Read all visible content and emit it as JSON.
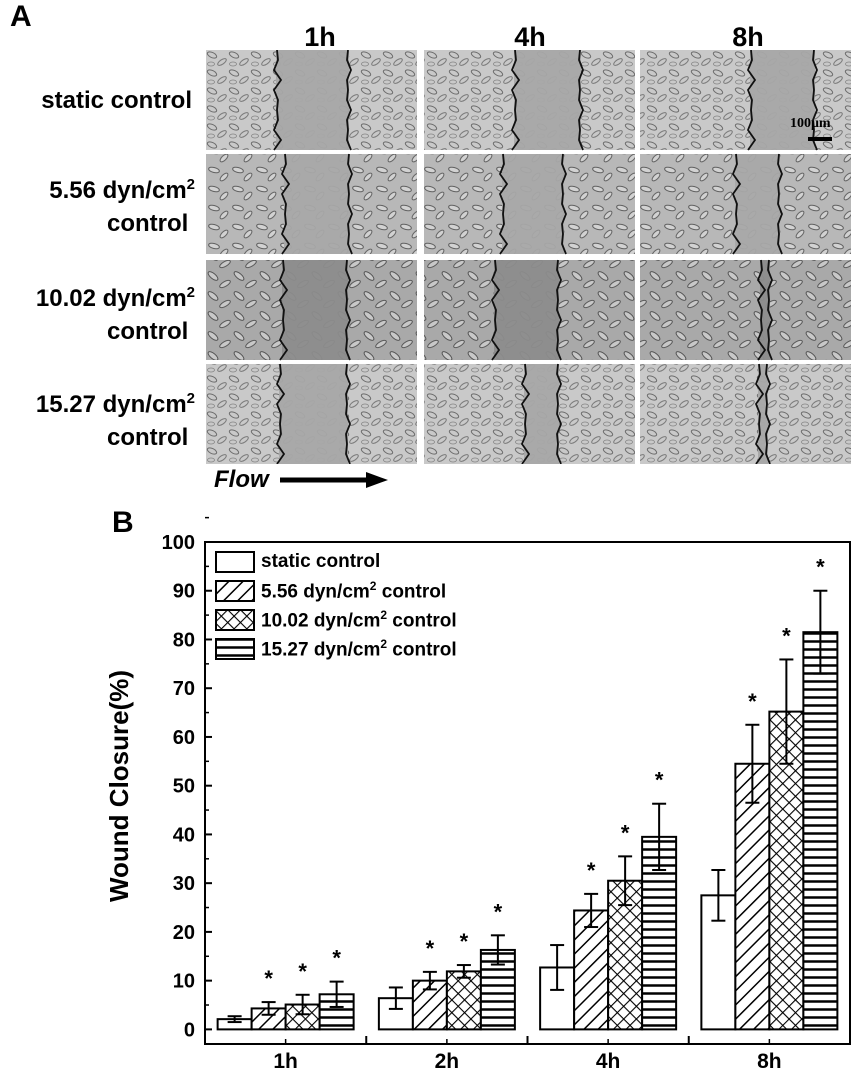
{
  "panel_a": {
    "letter": "A",
    "time_points": [
      "1h",
      "4h",
      "8h"
    ],
    "rows": [
      {
        "line1": "static control",
        "line2": "",
        "sup": ""
      },
      {
        "line1": "5.56 dyn/cm",
        "sup": "2",
        "line2": "control"
      },
      {
        "line1": "10.02 dyn/cm",
        "sup": "2",
        "line2": "control"
      },
      {
        "line1": "15.27 dyn/cm",
        "sup": "2",
        "line2": "control"
      }
    ],
    "scale_bar_label": "100μm",
    "flow_label": "Flow"
  },
  "panel_b": {
    "letter": "B"
  },
  "chart_data": {
    "type": "bar",
    "title": "",
    "xlabel": "",
    "ylabel": "Wound Closure(%)",
    "ylim": [
      0,
      100
    ],
    "yticks": [
      0,
      10,
      20,
      30,
      40,
      50,
      60,
      70,
      80,
      90,
      100
    ],
    "categories": [
      "1h",
      "2h",
      "4h",
      "8h"
    ],
    "legend_position": "top-left",
    "series": [
      {
        "name": "static control",
        "name_main": "static control",
        "name_sup": "",
        "name_tail": "",
        "pattern": "none",
        "values": [
          2.1,
          6.4,
          12.7,
          27.5
        ],
        "errors": [
          0.6,
          2.2,
          4.6,
          5.2
        ],
        "significant": [
          false,
          false,
          false,
          false
        ]
      },
      {
        "name": "5.56 dyn/cm2 control",
        "name_main": "5.56 dyn/cm",
        "name_sup": "2",
        "name_tail": " control",
        "pattern": "diagonal",
        "values": [
          4.3,
          10.0,
          24.4,
          54.5
        ],
        "errors": [
          1.3,
          1.8,
          3.4,
          8.0
        ],
        "significant": [
          true,
          true,
          true,
          true
        ]
      },
      {
        "name": "10.02 dyn/cm2 control",
        "name_main": "10.02 dyn/cm",
        "name_sup": "2",
        "name_tail": " control",
        "pattern": "crosshatch",
        "values": [
          5.1,
          11.9,
          30.5,
          65.2
        ],
        "errors": [
          2.0,
          1.3,
          5.0,
          10.7
        ],
        "significant": [
          true,
          true,
          true,
          true
        ]
      },
      {
        "name": "15.27 dyn/cm2 control",
        "name_main": "15.27 dyn/cm",
        "name_sup": "2",
        "name_tail": " control",
        "pattern": "horizontal",
        "values": [
          7.2,
          16.3,
          39.5,
          81.5
        ],
        "errors": [
          2.6,
          3.0,
          6.8,
          8.5
        ],
        "significant": [
          true,
          true,
          true,
          true
        ]
      }
    ],
    "significance_marker": "*"
  },
  "colors": {
    "ink": "#000000",
    "paper": "#ffffff",
    "micro_light": "#c7c7c7",
    "micro_dark": "#8f8f8f",
    "wound_gray": "#a2a2a2"
  }
}
